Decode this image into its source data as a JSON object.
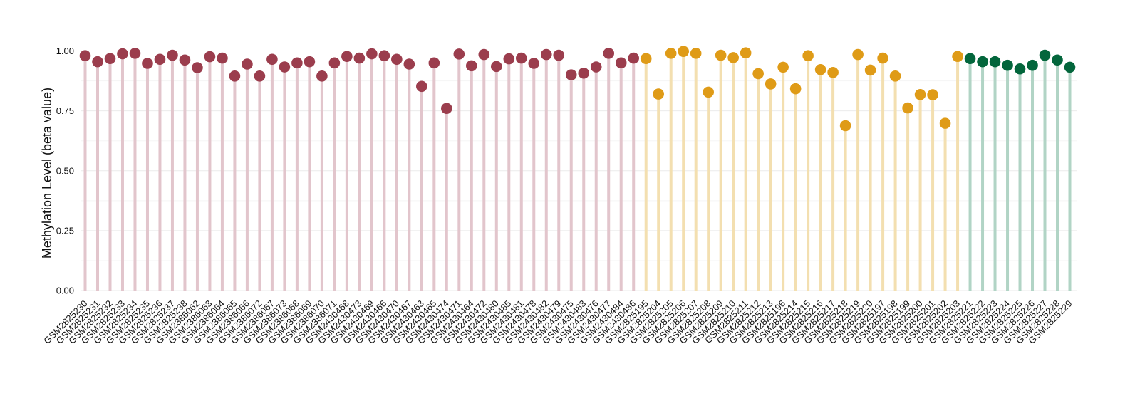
{
  "chart_data": {
    "type": "lollipop",
    "title": "",
    "ylabel": "Methylation Level (beta value)",
    "xlabel": "",
    "ylim": [
      0,
      1.02
    ],
    "yticks": [
      "0.00",
      "0.25",
      "0.50",
      "0.75",
      "1.00"
    ],
    "ytick_values": [
      0,
      0.25,
      0.5,
      0.75,
      1.0
    ],
    "grid": true,
    "legend": "none",
    "groups": [
      {
        "color": "#9b3d4d",
        "stem_color": "#e2c5cc"
      },
      {
        "color": "#df9b17",
        "stem_color": "#f3dfb0"
      },
      {
        "color": "#03663c",
        "stem_color": "#b1d4c5"
      }
    ],
    "samples": [
      {
        "label": "GSM2825230",
        "value": 0.98,
        "group": 0
      },
      {
        "label": "GSM2825231",
        "value": 0.955,
        "group": 0
      },
      {
        "label": "GSM2825232",
        "value": 0.968,
        "group": 0
      },
      {
        "label": "GSM2825233",
        "value": 0.988,
        "group": 0
      },
      {
        "label": "GSM2825234",
        "value": 0.99,
        "group": 0
      },
      {
        "label": "GSM2825235",
        "value": 0.948,
        "group": 0
      },
      {
        "label": "GSM2825236",
        "value": 0.965,
        "group": 0
      },
      {
        "label": "GSM2825237",
        "value": 0.982,
        "group": 0
      },
      {
        "label": "GSM2825238",
        "value": 0.962,
        "group": 0
      },
      {
        "label": "GSM2386062",
        "value": 0.93,
        "group": 0
      },
      {
        "label": "GSM2386063",
        "value": 0.976,
        "group": 0
      },
      {
        "label": "GSM2386064",
        "value": 0.97,
        "group": 0
      },
      {
        "label": "GSM2386065",
        "value": 0.895,
        "group": 0
      },
      {
        "label": "GSM2386066",
        "value": 0.945,
        "group": 0
      },
      {
        "label": "GSM2386072",
        "value": 0.895,
        "group": 0
      },
      {
        "label": "GSM2386067",
        "value": 0.965,
        "group": 0
      },
      {
        "label": "GSM2386073",
        "value": 0.933,
        "group": 0
      },
      {
        "label": "GSM2386068",
        "value": 0.95,
        "group": 0
      },
      {
        "label": "GSM2386069",
        "value": 0.955,
        "group": 0
      },
      {
        "label": "GSM2386070",
        "value": 0.895,
        "group": 0
      },
      {
        "label": "GSM2386071",
        "value": 0.95,
        "group": 0
      },
      {
        "label": "GSM2430468",
        "value": 0.977,
        "group": 0
      },
      {
        "label": "GSM2430473",
        "value": 0.97,
        "group": 0
      },
      {
        "label": "GSM2430469",
        "value": 0.988,
        "group": 0
      },
      {
        "label": "GSM2430466",
        "value": 0.98,
        "group": 0
      },
      {
        "label": "GSM2430470",
        "value": 0.965,
        "group": 0
      },
      {
        "label": "GSM2430467",
        "value": 0.945,
        "group": 0
      },
      {
        "label": "GSM2430463",
        "value": 0.852,
        "group": 0
      },
      {
        "label": "GSM2430465",
        "value": 0.95,
        "group": 0
      },
      {
        "label": "GSM2430474",
        "value": 0.76,
        "group": 0
      },
      {
        "label": "GSM2430471",
        "value": 0.987,
        "group": 0
      },
      {
        "label": "GSM2430464",
        "value": 0.938,
        "group": 0
      },
      {
        "label": "GSM2430472",
        "value": 0.985,
        "group": 0
      },
      {
        "label": "GSM2430480",
        "value": 0.935,
        "group": 0
      },
      {
        "label": "GSM2430485",
        "value": 0.967,
        "group": 0
      },
      {
        "label": "GSM2430481",
        "value": 0.97,
        "group": 0
      },
      {
        "label": "GSM2430478",
        "value": 0.948,
        "group": 0
      },
      {
        "label": "GSM2430482",
        "value": 0.985,
        "group": 0
      },
      {
        "label": "GSM2430479",
        "value": 0.982,
        "group": 0
      },
      {
        "label": "GSM2430475",
        "value": 0.9,
        "group": 0
      },
      {
        "label": "GSM2430483",
        "value": 0.907,
        "group": 0
      },
      {
        "label": "GSM2430476",
        "value": 0.933,
        "group": 0
      },
      {
        "label": "GSM2430477",
        "value": 0.99,
        "group": 0
      },
      {
        "label": "GSM2430484",
        "value": 0.95,
        "group": 0
      },
      {
        "label": "GSM2430486",
        "value": 0.97,
        "group": 0
      },
      {
        "label": "GSM2825195",
        "value": 0.968,
        "group": 1
      },
      {
        "label": "GSM2825204",
        "value": 0.82,
        "group": 1
      },
      {
        "label": "GSM2825205",
        "value": 0.99,
        "group": 1
      },
      {
        "label": "GSM2825206",
        "value": 0.998,
        "group": 1
      },
      {
        "label": "GSM2825207",
        "value": 0.99,
        "group": 1
      },
      {
        "label": "GSM2825208",
        "value": 0.828,
        "group": 1
      },
      {
        "label": "GSM2825209",
        "value": 0.982,
        "group": 1
      },
      {
        "label": "GSM2825210",
        "value": 0.972,
        "group": 1
      },
      {
        "label": "GSM2825211",
        "value": 0.992,
        "group": 1
      },
      {
        "label": "GSM2825212",
        "value": 0.905,
        "group": 1
      },
      {
        "label": "GSM2825213",
        "value": 0.862,
        "group": 1
      },
      {
        "label": "GSM2825196",
        "value": 0.932,
        "group": 1
      },
      {
        "label": "GSM2825214",
        "value": 0.842,
        "group": 1
      },
      {
        "label": "GSM2825215",
        "value": 0.98,
        "group": 1
      },
      {
        "label": "GSM2825216",
        "value": 0.922,
        "group": 1
      },
      {
        "label": "GSM2825217",
        "value": 0.91,
        "group": 1
      },
      {
        "label": "GSM2825218",
        "value": 0.688,
        "group": 1
      },
      {
        "label": "GSM2825219",
        "value": 0.985,
        "group": 1
      },
      {
        "label": "GSM2825220",
        "value": 0.92,
        "group": 1
      },
      {
        "label": "GSM2825197",
        "value": 0.97,
        "group": 1
      },
      {
        "label": "GSM2825198",
        "value": 0.895,
        "group": 1
      },
      {
        "label": "GSM2825199",
        "value": 0.762,
        "group": 1
      },
      {
        "label": "GSM2825200",
        "value": 0.818,
        "group": 1
      },
      {
        "label": "GSM2825201",
        "value": 0.817,
        "group": 1
      },
      {
        "label": "GSM2825202",
        "value": 0.698,
        "group": 1
      },
      {
        "label": "GSM2825203",
        "value": 0.977,
        "group": 1
      },
      {
        "label": "GSM2825221",
        "value": 0.968,
        "group": 2
      },
      {
        "label": "GSM2825222",
        "value": 0.955,
        "group": 2
      },
      {
        "label": "GSM2825223",
        "value": 0.955,
        "group": 2
      },
      {
        "label": "GSM2825224",
        "value": 0.94,
        "group": 2
      },
      {
        "label": "GSM2825225",
        "value": 0.925,
        "group": 2
      },
      {
        "label": "GSM2825226",
        "value": 0.94,
        "group": 2
      },
      {
        "label": "GSM2825227",
        "value": 0.982,
        "group": 2
      },
      {
        "label": "GSM2825228",
        "value": 0.962,
        "group": 2
      },
      {
        "label": "GSM2825229",
        "value": 0.932,
        "group": 2
      }
    ]
  }
}
